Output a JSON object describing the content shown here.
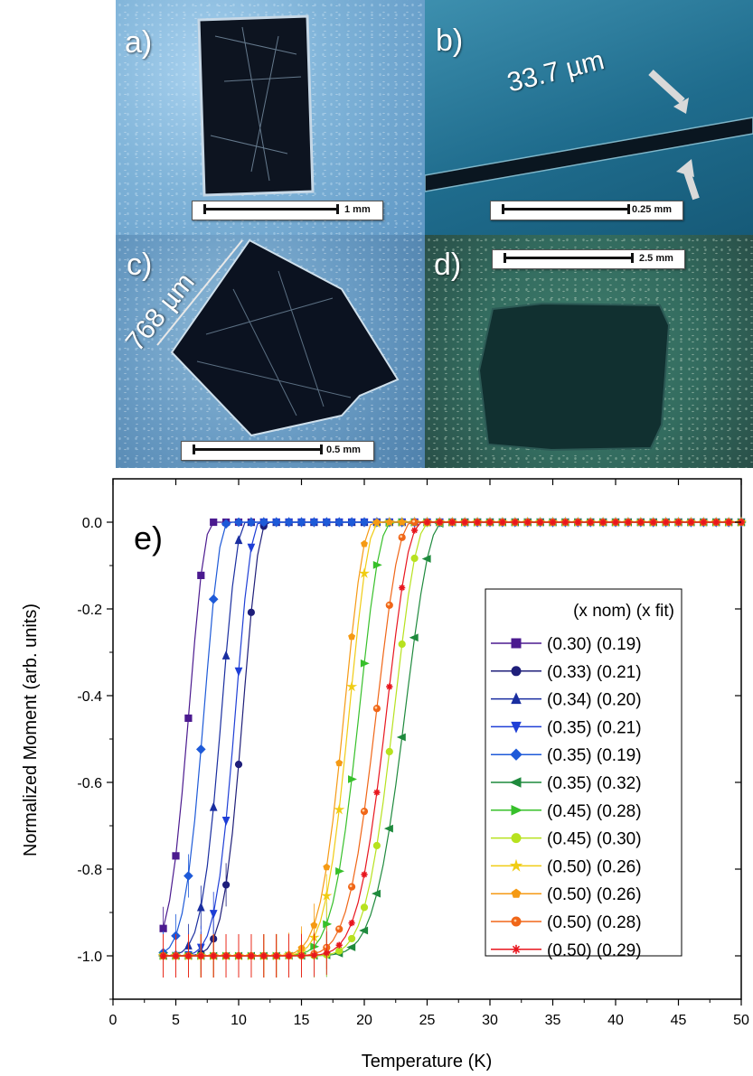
{
  "panels": {
    "a": {
      "letter": "a)",
      "scale_label": "1 mm"
    },
    "b": {
      "letter": "b)",
      "scale_label": "0.25 mm",
      "measurement": "33.7 µm"
    },
    "c": {
      "letter": "c)",
      "scale_label": "0.5 mm",
      "measurement": "768 µm"
    },
    "d": {
      "letter": "d)",
      "scale_label": "2.5 mm"
    }
  },
  "chart_data": {
    "type": "line",
    "panel_label": "e)",
    "xlabel": "Temperature (K)",
    "ylabel": "Normalized Moment (arb. units)",
    "xlim": [
      0,
      50
    ],
    "ylim": [
      -1.1,
      0.1
    ],
    "xticks": [
      0,
      5,
      10,
      15,
      20,
      25,
      30,
      35,
      40,
      45,
      50
    ],
    "yticks": [
      0.0,
      -0.2,
      -0.4,
      -0.6,
      -0.8,
      -1.0
    ],
    "grid": false,
    "legend_position": "right",
    "legend_title": "(x nom) (x fit)",
    "series": [
      {
        "name": "(0.30) (0.19)",
        "color": "#4b1a8f",
        "marker": "square",
        "tc": 8.0,
        "width": 0.9
      },
      {
        "name": "(0.33) (0.21)",
        "color": "#1f1f7a",
        "marker": "circle",
        "tc": 12.3,
        "width": 0.9
      },
      {
        "name": "(0.34) (0.20)",
        "color": "#1a2ea0",
        "marker": "triangle-up",
        "tc": 10.6,
        "width": 0.9
      },
      {
        "name": "(0.35) (0.21)",
        "color": "#1f3fd6",
        "marker": "triangle-down",
        "tc": 11.7,
        "width": 0.9
      },
      {
        "name": "(0.35) (0.19)",
        "color": "#1e5ad8",
        "marker": "diamond",
        "tc": 9.2,
        "width": 0.9
      },
      {
        "name": "(0.35) (0.32)",
        "color": "#1f8a3d",
        "marker": "triangle-left",
        "tc": 26.3,
        "width": 1.4
      },
      {
        "name": "(0.45) (0.28)",
        "color": "#37c02a",
        "marker": "triangle-right",
        "tc": 22.2,
        "width": 1.2
      },
      {
        "name": "(0.45) (0.30)",
        "color": "#b7e21f",
        "marker": "circle",
        "tc": 25.2,
        "width": 1.3
      },
      {
        "name": "(0.50) (0.26)",
        "color": "#f0cc14",
        "marker": "star",
        "tc": 21.2,
        "width": 1.1
      },
      {
        "name": "(0.50) (0.26)",
        "color": "#f59a14",
        "marker": "pentagon",
        "tc": 20.8,
        "width": 1.1
      },
      {
        "name": "(0.50) (0.28)",
        "color": "#f06618",
        "marker": "circle-dot",
        "tc": 23.8,
        "width": 1.3
      },
      {
        "name": "(0.50) (0.29)",
        "color": "#e8161e",
        "marker": "asterisk",
        "tc": 24.6,
        "width": 1.3
      }
    ]
  }
}
